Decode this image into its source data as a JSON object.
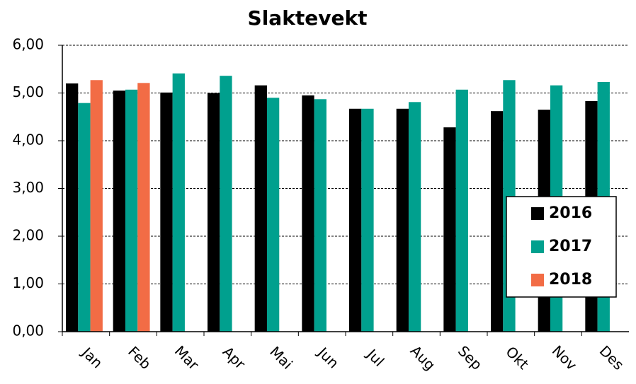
{
  "chart_data": {
    "type": "bar",
    "title": "Slaktevekt",
    "categories": [
      "Jan",
      "Feb",
      "Mar",
      "Apr",
      "Mai",
      "Jun",
      "Jul",
      "Aug",
      "Sep",
      "Okt",
      "Nov",
      "Des"
    ],
    "series": [
      {
        "name": "2016",
        "color": "#000000",
        "values": [
          5.2,
          5.05,
          5.01,
          5.0,
          5.16,
          4.95,
          4.67,
          4.67,
          4.28,
          4.62,
          4.65,
          4.83
        ]
      },
      {
        "name": "2017",
        "color": "#00a08e",
        "values": [
          4.79,
          5.07,
          5.41,
          5.36,
          4.9,
          4.87,
          4.67,
          4.81,
          5.07,
          5.27,
          5.16,
          5.23
        ]
      },
      {
        "name": "2018",
        "color": "#f26c45",
        "values": [
          5.27,
          5.21,
          null,
          null,
          null,
          null,
          null,
          null,
          null,
          null,
          null,
          null
        ]
      }
    ],
    "ylim": [
      0,
      6
    ],
    "yticks": [
      {
        "value": 0,
        "label": "0,00"
      },
      {
        "value": 1,
        "label": "1,00"
      },
      {
        "value": 2,
        "label": "2,00"
      },
      {
        "value": 3,
        "label": "3,00"
      },
      {
        "value": 4,
        "label": "4,00"
      },
      {
        "value": 5,
        "label": "5,00"
      },
      {
        "value": 6,
        "label": "6,00"
      }
    ],
    "grid": true,
    "legend": "right"
  }
}
